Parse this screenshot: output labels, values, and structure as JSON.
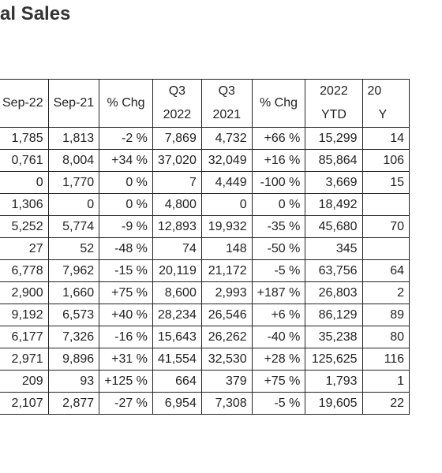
{
  "title": "al Sales",
  "columns": [
    {
      "line1": "Sep-22",
      "line2": ""
    },
    {
      "line1": "Sep-21",
      "line2": ""
    },
    {
      "line1": "% Chg",
      "line2": ""
    },
    {
      "line1": "Q3",
      "line2": "2022"
    },
    {
      "line1": "Q3",
      "line2": "2021"
    },
    {
      "line1": "% Chg",
      "line2": ""
    },
    {
      "line1": "2022",
      "line2": "YTD"
    },
    {
      "line1": "20",
      "line2": "Y"
    }
  ],
  "rows": [
    [
      "1,785",
      "1,813",
      "-2 %",
      "7,869",
      "4,732",
      "+66 %",
      "15,299",
      "14"
    ],
    [
      "0,761",
      "8,004",
      "+34 %",
      "37,020",
      "32,049",
      "+16 %",
      "85,864",
      "106"
    ],
    [
      "0",
      "1,770",
      "0 %",
      "7",
      "4,449",
      "-100 %",
      "3,669",
      "15"
    ],
    [
      "1,306",
      "0",
      "0 %",
      "4,800",
      "0",
      "0 %",
      "18,492",
      ""
    ],
    [
      "5,252",
      "5,774",
      "-9 %",
      "12,893",
      "19,932",
      "-35 %",
      "45,680",
      "70"
    ],
    [
      "27",
      "52",
      "-48 %",
      "74",
      "148",
      "-50 %",
      "345",
      ""
    ],
    [
      "6,778",
      "7,962",
      "-15 %",
      "20,119",
      "21,172",
      "-5 %",
      "63,756",
      "64"
    ],
    [
      "2,900",
      "1,660",
      "+75 %",
      "8,600",
      "2,993",
      "+187 %",
      "26,803",
      "2"
    ],
    [
      "9,192",
      "6,573",
      "+40 %",
      "28,234",
      "26,546",
      "+6 %",
      "86,129",
      "89"
    ],
    [
      "6,177",
      "7,326",
      "-16 %",
      "15,643",
      "26,262",
      "-40 %",
      "35,238",
      "80"
    ],
    [
      "2,971",
      "9,896",
      "+31 %",
      "41,554",
      "32,530",
      "+28 %",
      "125,625",
      "116"
    ],
    [
      "209",
      "93",
      "+125 %",
      "664",
      "379",
      "+75 %",
      "1,793",
      "1"
    ],
    [
      "2,107",
      "2,877",
      "-27 %",
      "6,954",
      "7,308",
      "-5 %",
      "19,605",
      "22"
    ]
  ]
}
